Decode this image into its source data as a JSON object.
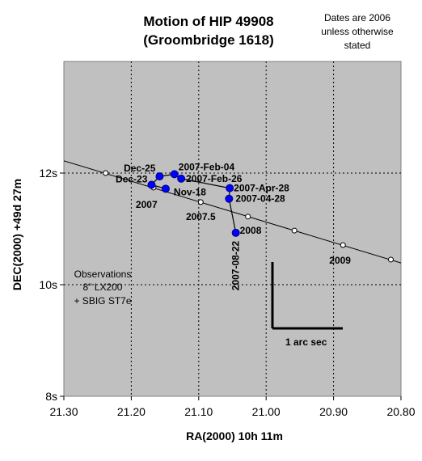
{
  "chart_data": {
    "type": "scatter",
    "title_lines": [
      "Motion of HIP 49908",
      "(Groombridge 1618)"
    ],
    "note_lines": [
      "Dates are 2006",
      "unless otherwise",
      "stated"
    ],
    "xlabel": "RA(2000) 10h 11m",
    "ylabel": "DEC(2000) +49d 27m",
    "xlim": [
      21.3,
      20.8
    ],
    "ylim": [
      8,
      14
    ],
    "x_ticks": [
      {
        "value": 21.3,
        "label": "21.30"
      },
      {
        "value": 21.2,
        "label": "21.20"
      },
      {
        "value": 21.1,
        "label": "21.10"
      },
      {
        "value": 21.0,
        "label": "21.00"
      },
      {
        "value": 20.9,
        "label": "20.90"
      },
      {
        "value": 20.8,
        "label": "20.80"
      }
    ],
    "y_ticks": [
      {
        "value": 8,
        "label": "8s"
      },
      {
        "value": 10,
        "label": "10s"
      },
      {
        "value": 12,
        "label": "12s"
      }
    ],
    "grid": "dashed",
    "background": "#c0c0c0",
    "observed": {
      "color": "#0000ff",
      "points": [
        {
          "x": 21.158,
          "y": 11.94,
          "label": "Dec-25"
        },
        {
          "x": 21.17,
          "y": 11.79,
          "label": "Dec-23"
        },
        {
          "x": 21.136,
          "y": 11.98,
          "label": "2007-Feb-04"
        },
        {
          "x": 21.126,
          "y": 11.9,
          "label": "2007-Feb-26"
        },
        {
          "x": 21.149,
          "y": 11.72,
          "label": "Nov-18"
        },
        {
          "x": 21.054,
          "y": 11.73,
          "label": "2007-Apr-28"
        },
        {
          "x": 21.055,
          "y": 11.54,
          "label": "2007-04-28"
        },
        {
          "x": 21.045,
          "y": 10.93,
          "label": "2007-08-22"
        }
      ],
      "path": [
        {
          "x": 21.149,
          "y": 11.72
        },
        {
          "x": 21.17,
          "y": 11.79
        },
        {
          "x": 21.158,
          "y": 11.94
        },
        {
          "x": 21.136,
          "y": 11.98
        },
        {
          "x": 21.126,
          "y": 11.9
        },
        {
          "x": 21.054,
          "y": 11.73
        },
        {
          "x": 21.055,
          "y": 11.54
        },
        {
          "x": 21.045,
          "y": 10.93
        }
      ]
    },
    "predicted": {
      "line": [
        {
          "x": 21.3,
          "y": 12.22
        },
        {
          "x": 20.8,
          "y": 10.39
        }
      ],
      "points": [
        {
          "x": 21.238,
          "y": 12.0,
          "label": ""
        },
        {
          "x": 21.167,
          "y": 11.74,
          "label": "2007"
        },
        {
          "x": 21.097,
          "y": 11.48,
          "label": "2007.5"
        },
        {
          "x": 21.027,
          "y": 11.22,
          "label": "2008"
        },
        {
          "x": 20.958,
          "y": 10.97,
          "label": ""
        },
        {
          "x": 20.886,
          "y": 10.71,
          "label": "2009"
        },
        {
          "x": 20.815,
          "y": 10.45,
          "label": ""
        }
      ]
    },
    "annotations": {
      "observations_lines": [
        "Observations",
        "8\" LX200",
        "+ SBIG ST7e"
      ],
      "scale_bar_label": "1 arc sec"
    }
  }
}
